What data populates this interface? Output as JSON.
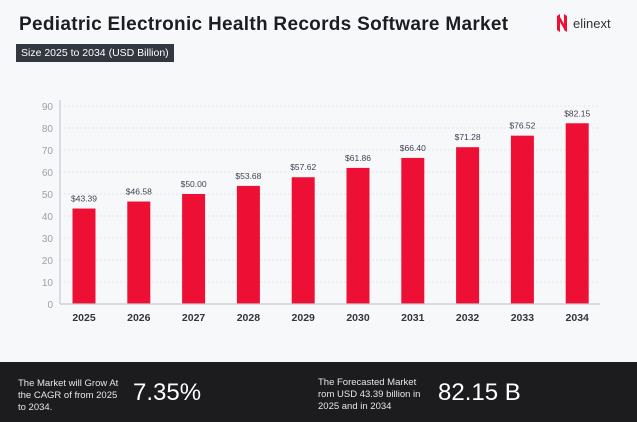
{
  "header": {
    "title": "Pediatric Electronic Health Records Software Market",
    "subtitle": "Size 2025 to 2034 (USD Billion)",
    "logo_text": "elinext"
  },
  "chart_data": {
    "type": "bar",
    "categories": [
      "2025",
      "2026",
      "2027",
      "2028",
      "2029",
      "2030",
      "2031",
      "2032",
      "2033",
      "2034"
    ],
    "values": [
      43.39,
      46.58,
      50.0,
      53.68,
      57.62,
      61.86,
      66.4,
      71.28,
      76.52,
      82.15
    ],
    "data_labels": [
      "$43.39",
      "$46.58",
      "$50.00",
      "$53.68",
      "$57.62",
      "$61.86",
      "$66.40",
      "$71.28",
      "$76.52",
      "$82.15"
    ],
    "ylim": [
      0,
      90
    ],
    "yticks": [
      0,
      10,
      20,
      30,
      40,
      50,
      60,
      70,
      80,
      90
    ],
    "grid": true,
    "bar_color": "#ee0f35"
  },
  "footer": {
    "cagr_text": "The Market will Grow At the CAGR of from 2025 to 2034.",
    "cagr_value": "7.35%",
    "forecast_text": "The Forecasted Market rom USD 43.39 billion in 2025 and in 2034",
    "forecast_value": "82.15 B"
  }
}
